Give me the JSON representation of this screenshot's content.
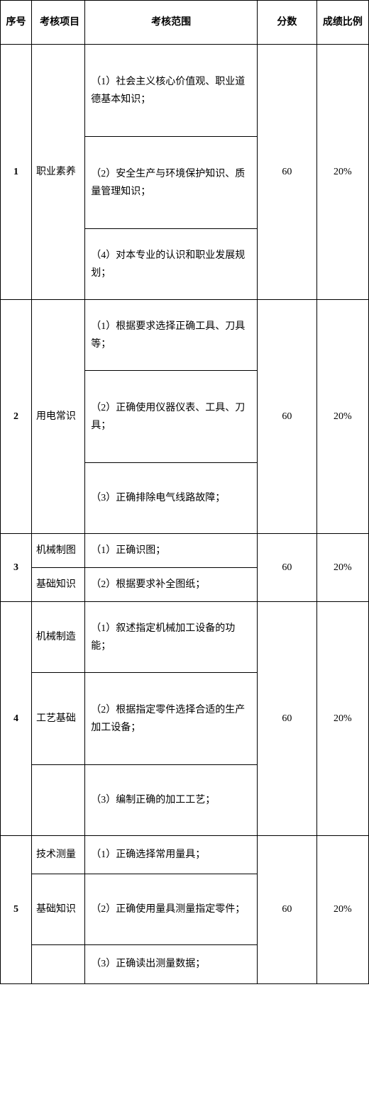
{
  "headers": {
    "seq": "序号",
    "item": "考核项目",
    "scope": "考核范围",
    "score": "分数",
    "ratio": "成绩比例"
  },
  "rows": [
    {
      "seq": "1",
      "item": "职业素养",
      "scopes": [
        "（1）社会主义核心价值观、职业道德基本知识；",
        "（2）安全生产与环境保护知识、质量管理知识；",
        "（4）对本专业的认识和职业发展规划；"
      ],
      "score": "60",
      "ratio": "20%"
    },
    {
      "seq": "2",
      "item": "用电常识",
      "scopes": [
        "（1）根据要求选择正确工具、刀具等；",
        "（2）正确使用仪器仪表、工具、刀具；",
        "（3）正确排除电气线路故障；"
      ],
      "score": "60",
      "ratio": "20%"
    },
    {
      "seq": "3",
      "items": [
        "机械制图",
        "基础知识"
      ],
      "scopes": [
        "（1）正确识图；",
        "（2）根据要求补全图纸；"
      ],
      "score": "60",
      "ratio": "20%"
    },
    {
      "seq": "4",
      "items": [
        "机械制造",
        "工艺基础",
        ""
      ],
      "scopes": [
        "（1）叙述指定机械加工设备的功能；",
        "（2）根据指定零件选择合适的生产加工设备；",
        "（3）编制正确的加工工艺；"
      ],
      "score": "60",
      "ratio": "20%"
    },
    {
      "seq": "5",
      "items": [
        "技术测量",
        "基础知识",
        ""
      ],
      "scopes": [
        "（1）正确选择常用量具；",
        "（2）正确使用量具测量指定零件；",
        "（3）正确读出测量数据；"
      ],
      "score": "60",
      "ratio": "20%"
    }
  ]
}
